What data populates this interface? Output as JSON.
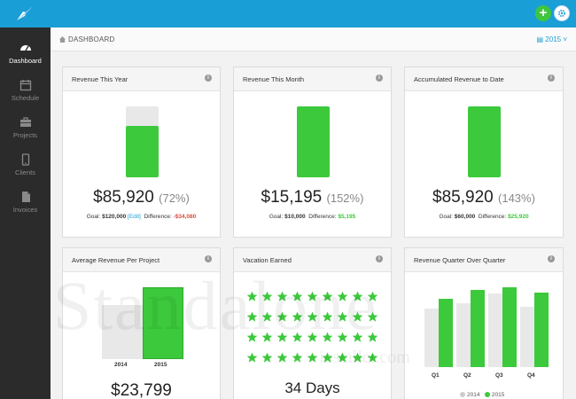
{
  "topbar": {
    "add_label": "+"
  },
  "sidebar": {
    "items": [
      {
        "label": "Dashboard",
        "icon": "dashboard-icon"
      },
      {
        "label": "Schedule",
        "icon": "calendar-icon"
      },
      {
        "label": "Projects",
        "icon": "briefcase-icon"
      },
      {
        "label": "Clients",
        "icon": "phone-icon"
      },
      {
        "label": "Invoices",
        "icon": "document-icon"
      }
    ]
  },
  "breadcrumb": {
    "label": "DASHBOARD",
    "year": "2015"
  },
  "cards": {
    "revenue_year": {
      "title": "Revenue This Year",
      "value": "$85,920",
      "pct": "(72%)",
      "fill_fraction": 0.72,
      "goal_label": "Goal:",
      "goal_value": "$120,000",
      "edit_label": "[Edit]",
      "diff_label": "Difference:",
      "diff_value": "-$34,080"
    },
    "revenue_month": {
      "title": "Revenue This Month",
      "value": "$15,195",
      "pct": "(152%)",
      "fill_fraction": 1.0,
      "goal_label": "Goal:",
      "goal_value": "$10,000",
      "diff_label": "Difference:",
      "diff_value": "$5,195"
    },
    "accumulated": {
      "title": "Accumulated Revenue to Date",
      "value": "$85,920",
      "pct": "(143%)",
      "fill_fraction": 1.0,
      "goal_label": "Goal:",
      "goal_value": "$60,000",
      "diff_label": "Difference:",
      "diff_value": "$25,920"
    },
    "avg_project": {
      "title": "Average Revenue Per Project",
      "value": "$23,799",
      "label_2014": "2014",
      "label_2015": "2015"
    },
    "vacation": {
      "title": "Vacation Earned",
      "value": "34 Days",
      "stars_total": 36
    },
    "quarter": {
      "title": "Revenue Quarter Over Quarter",
      "legend_2014": "2014",
      "legend_2015": "2015"
    }
  },
  "chart_data": [
    {
      "type": "bar",
      "categories": [
        "2014",
        "2015"
      ],
      "values": [
        0.75,
        1.0
      ],
      "title": "Average Revenue Per Project"
    },
    {
      "type": "bar",
      "categories": [
        "Q1",
        "Q2",
        "Q3",
        "Q4"
      ],
      "series": [
        {
          "name": "2014",
          "values": [
            0.73,
            0.8,
            0.92,
            0.75
          ]
        },
        {
          "name": "2015",
          "values": [
            0.86,
            0.97,
            1.0,
            0.93
          ]
        }
      ],
      "title": "Revenue Quarter Over Quarter",
      "legend": "bottom"
    }
  ],
  "watermark": {
    "main": "Standalone",
    "sub": "installer.com"
  },
  "colors": {
    "accent": "#1a9ed6",
    "green": "#3cc93c",
    "grey_bar": "#e8e8e8",
    "negative": "#e04a3a"
  }
}
